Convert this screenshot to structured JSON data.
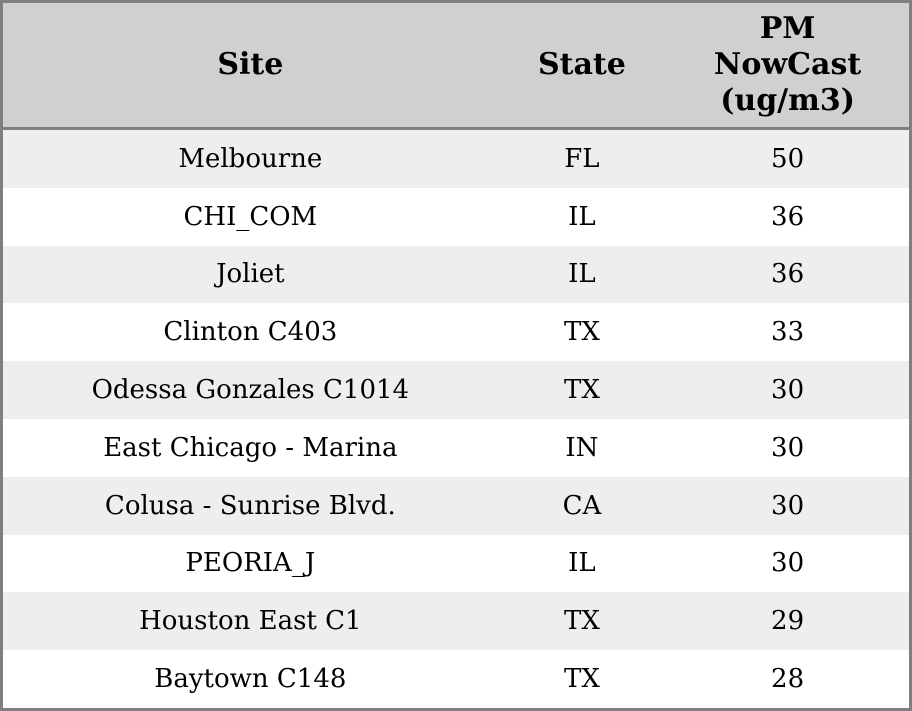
{
  "colors": {
    "border": "#7f7f7f",
    "header_bg": "#d0d0d0",
    "row_alt_bg": "#eeeeee",
    "row_bg": "#ffffff",
    "text": "#000000"
  },
  "table": {
    "headers": {
      "site": "Site",
      "state": "State",
      "pm": "PM\nNowCast\n(ug/m3)"
    },
    "rows": [
      {
        "site": "Melbourne",
        "state": "FL",
        "pm": "50"
      },
      {
        "site": "CHI_COM",
        "state": "IL",
        "pm": "36"
      },
      {
        "site": "Joliet",
        "state": "IL",
        "pm": "36"
      },
      {
        "site": "Clinton C403",
        "state": "TX",
        "pm": "33"
      },
      {
        "site": "Odessa Gonzales C1014",
        "state": "TX",
        "pm": "30"
      },
      {
        "site": "East Chicago - Marina",
        "state": "IN",
        "pm": "30"
      },
      {
        "site": "Colusa - Sunrise Blvd.",
        "state": "CA",
        "pm": "30"
      },
      {
        "site": "PEORIA_J",
        "state": "IL",
        "pm": "30"
      },
      {
        "site": "Houston East C1",
        "state": "TX",
        "pm": "29"
      },
      {
        "site": "Baytown C148",
        "state": "TX",
        "pm": "28"
      }
    ]
  },
  "chart_data": {
    "type": "table",
    "title": "",
    "columns": [
      "Site",
      "State",
      "PM NowCast (ug/m3)"
    ],
    "rows": [
      [
        "Melbourne",
        "FL",
        50
      ],
      [
        "CHI_COM",
        "IL",
        36
      ],
      [
        "Joliet",
        "IL",
        36
      ],
      [
        "Clinton C403",
        "TX",
        33
      ],
      [
        "Odessa Gonzales C1014",
        "TX",
        30
      ],
      [
        "East Chicago - Marina",
        "IN",
        30
      ],
      [
        "Colusa - Sunrise Blvd.",
        "CA",
        30
      ],
      [
        "PEORIA_J",
        "IL",
        30
      ],
      [
        "Houston East C1",
        "TX",
        29
      ],
      [
        "Baytown C148",
        "TX",
        28
      ]
    ],
    "layout_hints": {
      "header_bg": "#d0d0d0",
      "zebra_striping": true,
      "text_align": "center",
      "grid": false
    }
  }
}
